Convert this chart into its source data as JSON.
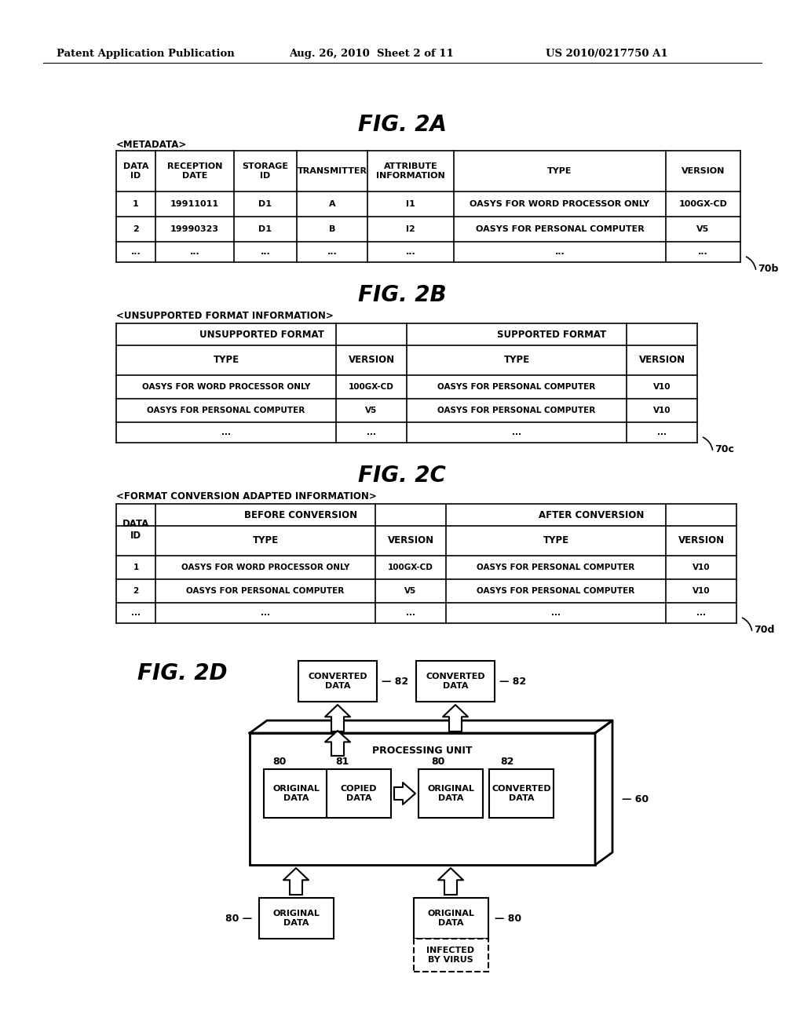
{
  "bg_color": "#ffffff",
  "patent_left": "Patent Application Publication",
  "patent_center": "Aug. 26, 2010  Sheet 2 of 11",
  "patent_right": "US 2010/0217750 A1",
  "fig2a_title": "FIG. 2A",
  "fig2a_metadata_label": "<METADATA>",
  "fig2a_ref": "70b",
  "fig2b_title": "FIG. 2B",
  "fig2b_metadata_label": "<UNSUPPORTED FORMAT INFORMATION>",
  "fig2b_ref": "70c",
  "fig2c_title": "FIG. 2C",
  "fig2c_metadata_label": "<FORMAT CONVERSION ADAPTED INFORMATION>",
  "fig2c_ref": "70d",
  "fig2d_title": "FIG. 2D",
  "fig2d_ref": "60"
}
